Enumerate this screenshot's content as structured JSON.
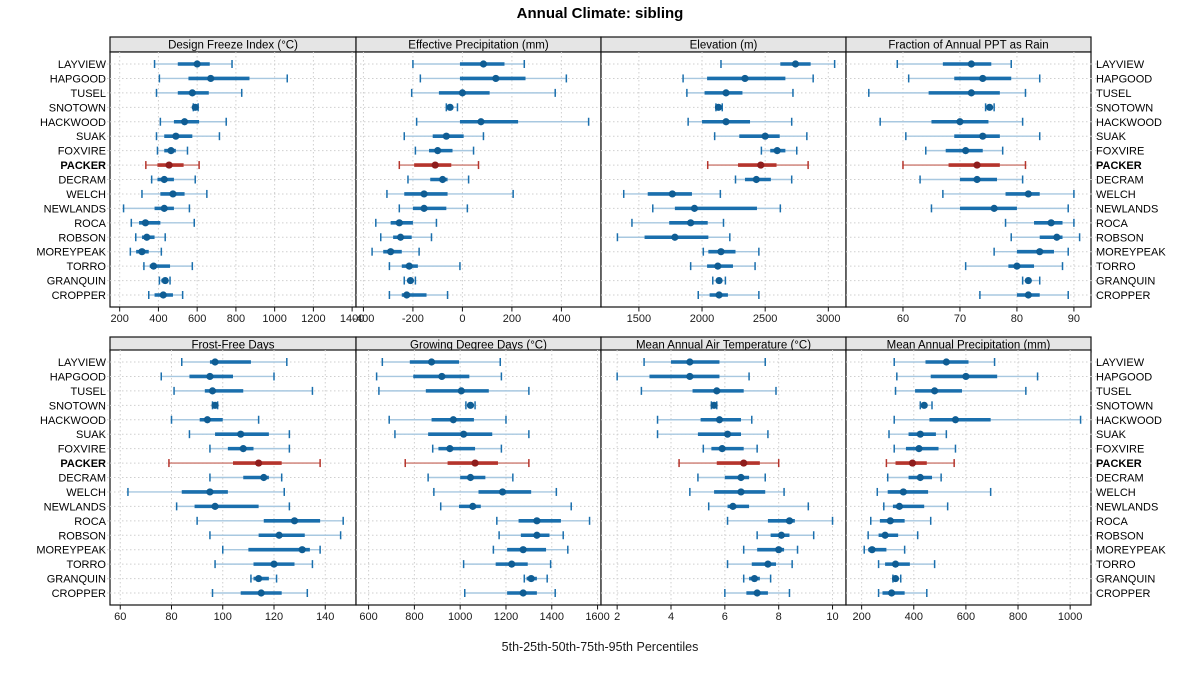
{
  "chart_data": {
    "type": "dotplot",
    "title": "Annual Climate: sibling",
    "caption": "5th-25th-50th-75th-95th Percentiles",
    "percentiles": [
      5,
      25,
      50,
      75,
      95
    ],
    "grid": "dotted",
    "legend_position": "none",
    "stations": [
      "LAYVIEW",
      "HAPGOOD",
      "TUSEL",
      "SNOTOWN",
      "HACKWOOD",
      "SUAK",
      "FOXVIRE",
      "PACKER",
      "DECRAM",
      "WELCH",
      "NEWLANDS",
      "ROCA",
      "ROBSON",
      "MOREYPEAK",
      "TORRO",
      "GRANQUIN",
      "CROPPER"
    ],
    "highlight_station": "PACKER",
    "panels": [
      {
        "title": "Design Freeze Index (°C)",
        "grid_row": 0,
        "grid_col": 0,
        "ticks": [
          200,
          400,
          600,
          800,
          1000,
          1200,
          1400
        ],
        "xlim": [
          150,
          1420
        ],
        "values": [
          [
            380,
            500,
            600,
            665,
            780
          ],
          [
            405,
            555,
            670,
            870,
            1065
          ],
          [
            390,
            500,
            575,
            660,
            830
          ],
          [
            580,
            585,
            590,
            598,
            605
          ],
          [
            410,
            480,
            535,
            610,
            750
          ],
          [
            390,
            430,
            490,
            575,
            715
          ],
          [
            395,
            430,
            465,
            490,
            550
          ],
          [
            335,
            395,
            455,
            530,
            610
          ],
          [
            365,
            395,
            430,
            480,
            590
          ],
          [
            315,
            410,
            475,
            535,
            650
          ],
          [
            220,
            380,
            430,
            480,
            560
          ],
          [
            260,
            300,
            333,
            410,
            585
          ],
          [
            283,
            315,
            340,
            380,
            435
          ],
          [
            255,
            285,
            315,
            350,
            415
          ],
          [
            325,
            355,
            375,
            460,
            575
          ],
          [
            405,
            415,
            435,
            445,
            460
          ],
          [
            350,
            380,
            425,
            475,
            525
          ]
        ]
      },
      {
        "title": "Effective Precipitation (mm)",
        "grid_row": 0,
        "grid_col": 1,
        "ticks": [
          -400,
          -200,
          0,
          200,
          400
        ],
        "xlim": [
          -430,
          560
        ],
        "values": [
          [
            -200,
            -10,
            85,
            170,
            250
          ],
          [
            -170,
            -10,
            135,
            255,
            420
          ],
          [
            -205,
            -95,
            0,
            110,
            375
          ],
          [
            -65,
            -57,
            -50,
            -42,
            -20
          ],
          [
            -185,
            -10,
            75,
            225,
            510
          ],
          [
            -235,
            -120,
            -65,
            5,
            85
          ],
          [
            -190,
            -135,
            -100,
            -40,
            45
          ],
          [
            -255,
            -195,
            -110,
            -45,
            65
          ],
          [
            -220,
            -130,
            -80,
            -60,
            25
          ],
          [
            -305,
            -235,
            -155,
            -60,
            205
          ],
          [
            -255,
            -200,
            -155,
            -65,
            20
          ],
          [
            -350,
            -290,
            -255,
            -200,
            -105
          ],
          [
            -330,
            -280,
            -250,
            -205,
            -125
          ],
          [
            -365,
            -320,
            -290,
            -245,
            -175
          ],
          [
            -295,
            -245,
            -215,
            -180,
            -10
          ],
          [
            -235,
            -220,
            -210,
            -200,
            -190
          ],
          [
            -295,
            -245,
            -225,
            -145,
            -60
          ]
        ]
      },
      {
        "title": "Elevation (m)",
        "grid_row": 0,
        "grid_col": 2,
        "ticks": [
          1500,
          2000,
          2500,
          3000
        ],
        "xlim": [
          1200,
          3140
        ],
        "values": [
          [
            2150,
            2620,
            2740,
            2860,
            3050
          ],
          [
            1850,
            2040,
            2340,
            2660,
            2880
          ],
          [
            1880,
            2020,
            2190,
            2320,
            2720
          ],
          [
            2110,
            2120,
            2130,
            2145,
            2160
          ],
          [
            1890,
            2000,
            2190,
            2380,
            2710
          ],
          [
            2100,
            2295,
            2500,
            2615,
            2830
          ],
          [
            2470,
            2540,
            2595,
            2660,
            2750
          ],
          [
            2045,
            2285,
            2465,
            2590,
            2840
          ],
          [
            2265,
            2340,
            2430,
            2545,
            2710
          ],
          [
            1380,
            1570,
            1765,
            1920,
            2145
          ],
          [
            1610,
            1785,
            1940,
            2435,
            2620
          ],
          [
            1445,
            1740,
            1910,
            2045,
            2170
          ],
          [
            1330,
            1545,
            1785,
            2050,
            2220
          ],
          [
            2010,
            2050,
            2150,
            2265,
            2450
          ],
          [
            1910,
            2040,
            2125,
            2245,
            2420
          ],
          [
            2085,
            2115,
            2135,
            2155,
            2185
          ],
          [
            1970,
            2060,
            2135,
            2205,
            2450
          ]
        ]
      },
      {
        "title": "Fraction of Annual PPT as Rain",
        "grid_row": 0,
        "grid_col": 3,
        "ticks": [
          60,
          70,
          80,
          90
        ],
        "xlim": [
          50,
          93
        ],
        "values": [
          [
            59,
            67,
            72,
            75.5,
            79
          ],
          [
            61,
            69,
            74,
            79,
            84
          ],
          [
            54,
            64.5,
            72,
            77,
            81.5
          ],
          [
            74.5,
            75,
            75.2,
            75.6,
            76
          ],
          [
            56,
            65,
            70,
            75,
            81
          ],
          [
            60.5,
            69,
            74,
            77,
            84
          ],
          [
            64,
            67.5,
            71,
            74,
            77.5
          ],
          [
            60,
            68,
            73,
            77,
            81.5
          ],
          [
            63,
            70,
            73,
            76.5,
            81
          ],
          [
            67,
            78,
            82,
            84,
            90
          ],
          [
            65,
            70,
            76,
            80,
            89
          ],
          [
            78,
            83,
            86,
            88,
            90
          ],
          [
            79,
            84,
            87,
            88,
            91
          ],
          [
            76,
            80,
            84,
            86.5,
            89
          ],
          [
            71,
            78.5,
            80,
            83,
            88
          ],
          [
            81,
            81.5,
            82,
            82.5,
            84
          ],
          [
            73.5,
            80,
            82,
            84,
            89
          ]
        ]
      },
      {
        "title": "Frost-Free Days",
        "grid_row": 1,
        "grid_col": 0,
        "ticks": [
          60,
          80,
          100,
          120,
          140
        ],
        "xlim": [
          56,
          152
        ],
        "values": [
          [
            84,
            95,
            97,
            111,
            125
          ],
          [
            76,
            87,
            95,
            104,
            120
          ],
          [
            81,
            93,
            96,
            108,
            135
          ],
          [
            96,
            96.5,
            97,
            97.5,
            98
          ],
          [
            80,
            91,
            94,
            100,
            114
          ],
          [
            87,
            97,
            107,
            118,
            126
          ],
          [
            95,
            102,
            108,
            112,
            126
          ],
          [
            79,
            104,
            114,
            123,
            138
          ],
          [
            95,
            108,
            116,
            118,
            123
          ],
          [
            63,
            84,
            95,
            102,
            124
          ],
          [
            82,
            89,
            97,
            114,
            126
          ],
          [
            90,
            116,
            128,
            138,
            147
          ],
          [
            95,
            114,
            122,
            132,
            146
          ],
          [
            100,
            110,
            131,
            134,
            138
          ],
          [
            97,
            112,
            120,
            128,
            135
          ],
          [
            111,
            112,
            114,
            118,
            121
          ],
          [
            96,
            107,
            115,
            123,
            133
          ]
        ]
      },
      {
        "title": "Growing Degree Days (°C)",
        "grid_row": 1,
        "grid_col": 1,
        "ticks": [
          600,
          800,
          1000,
          1200,
          1400,
          1600
        ],
        "xlim": [
          545,
          1615
        ],
        "values": [
          [
            660,
            780,
            875,
            995,
            1175
          ],
          [
            635,
            795,
            920,
            1040,
            1180
          ],
          [
            645,
            850,
            1005,
            1125,
            1300
          ],
          [
            1025,
            1035,
            1045,
            1055,
            1065
          ],
          [
            690,
            875,
            970,
            1060,
            1200
          ],
          [
            715,
            860,
            1015,
            1140,
            1300
          ],
          [
            880,
            905,
            955,
            1065,
            1180
          ],
          [
            760,
            945,
            1065,
            1165,
            1300
          ],
          [
            860,
            1000,
            1045,
            1110,
            1230
          ],
          [
            885,
            1080,
            1185,
            1310,
            1420
          ],
          [
            915,
            995,
            1055,
            1090,
            1485
          ],
          [
            1160,
            1255,
            1335,
            1440,
            1565
          ],
          [
            1170,
            1265,
            1335,
            1390,
            1450
          ],
          [
            1145,
            1205,
            1275,
            1375,
            1470
          ],
          [
            1015,
            1155,
            1225,
            1295,
            1395
          ],
          [
            1280,
            1290,
            1310,
            1335,
            1380
          ],
          [
            1020,
            1205,
            1275,
            1335,
            1415
          ]
        ]
      },
      {
        "title": "Mean Annual Air Temperature (°C)",
        "grid_row": 1,
        "grid_col": 2,
        "ticks": [
          2,
          4,
          6,
          8,
          10
        ],
        "xlim": [
          1.4,
          10.5
        ],
        "values": [
          [
            3.0,
            4.0,
            4.7,
            5.8,
            7.5
          ],
          [
            2.0,
            3.2,
            4.7,
            5.8,
            6.9
          ],
          [
            2.9,
            4.8,
            5.7,
            6.7,
            7.9
          ],
          [
            5.5,
            5.55,
            5.6,
            5.65,
            5.7
          ],
          [
            3.5,
            5.1,
            5.8,
            6.6,
            7.0
          ],
          [
            3.5,
            5.0,
            6.1,
            6.6,
            7.6
          ],
          [
            5.2,
            5.5,
            5.9,
            6.7,
            7.2
          ],
          [
            4.3,
            5.7,
            6.7,
            7.3,
            8.0
          ],
          [
            5.0,
            6.0,
            6.6,
            6.9,
            7.5
          ],
          [
            4.7,
            5.6,
            6.6,
            7.5,
            8.2
          ],
          [
            5.4,
            6.1,
            6.3,
            6.9,
            9.1
          ],
          [
            6.1,
            7.6,
            8.4,
            8.6,
            10.0
          ],
          [
            7.2,
            7.7,
            8.1,
            8.4,
            9.3
          ],
          [
            6.7,
            7.2,
            8.0,
            8.2,
            8.7
          ],
          [
            6.1,
            7.0,
            7.6,
            7.9,
            8.5
          ],
          [
            6.7,
            6.9,
            7.1,
            7.3,
            7.7
          ],
          [
            6.0,
            6.8,
            7.2,
            7.6,
            8.4
          ]
        ]
      },
      {
        "title": "Mean Annual Precipitation (mm)",
        "grid_row": 1,
        "grid_col": 3,
        "ticks": [
          200,
          400,
          600,
          800,
          1000
        ],
        "xlim": [
          140,
          1080
        ],
        "values": [
          [
            325,
            445,
            525,
            610,
            710
          ],
          [
            335,
            465,
            600,
            720,
            875
          ],
          [
            330,
            405,
            480,
            585,
            830
          ],
          [
            425,
            430,
            440,
            450,
            470
          ],
          [
            325,
            460,
            560,
            695,
            1040
          ],
          [
            305,
            380,
            425,
            485,
            525
          ],
          [
            325,
            370,
            420,
            495,
            560
          ],
          [
            295,
            330,
            395,
            450,
            555
          ],
          [
            300,
            380,
            425,
            470,
            505
          ],
          [
            260,
            300,
            360,
            455,
            695
          ],
          [
            285,
            320,
            345,
            440,
            530
          ],
          [
            235,
            270,
            310,
            365,
            465
          ],
          [
            225,
            265,
            290,
            340,
            415
          ],
          [
            210,
            225,
            240,
            295,
            365
          ],
          [
            265,
            290,
            330,
            385,
            480
          ],
          [
            320,
            325,
            330,
            340,
            350
          ],
          [
            265,
            280,
            315,
            365,
            450
          ]
        ]
      }
    ],
    "colors": {
      "normal": "#1a6fad",
      "normal_light": "#a8c8e0",
      "normal_dot": "#0f5d94",
      "highlight": "#b5342c",
      "highlight_light": "#cc7a70",
      "highlight_dot": "#8f1d1d",
      "strip_bg": "#e5e5e5",
      "panel_border": "#111111",
      "gridline": "#cfcfcf",
      "text": "#000000"
    }
  }
}
